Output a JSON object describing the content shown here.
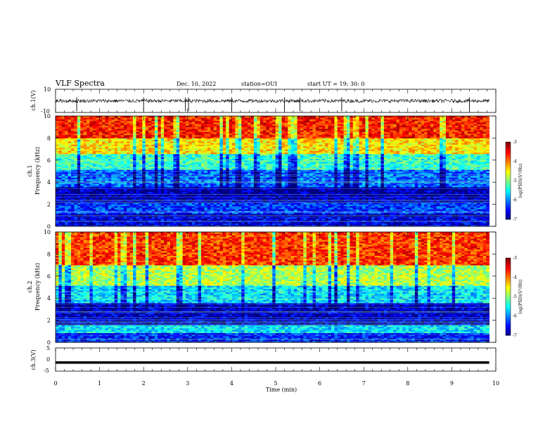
{
  "header": {
    "title": "VLF Spectra",
    "date": "Dec. 10, 2022",
    "station": "station=OUI",
    "start": "start  UT =   19: 30: 0"
  },
  "chart_data": [
    {
      "type": "line",
      "name": "ch1-waveform",
      "ylabel": "ch.1(V)",
      "ylim": [
        -10,
        10
      ],
      "y_ticks": [
        "10",
        "-10"
      ],
      "x_range": [
        0,
        9.85
      ],
      "baseline": 0,
      "spike_times": [
        0.48,
        2.0,
        2.95,
        3.02,
        4.0,
        5.2,
        5.55,
        6.5,
        9.4
      ]
    },
    {
      "type": "heatmap",
      "name": "ch1-spectrogram",
      "ylabel": "ch.1\nFrequency (kHz)",
      "ylim": [
        0,
        10
      ],
      "y_ticks": [
        "0",
        "2",
        "4",
        "6",
        "8",
        "10"
      ],
      "colorbar": {
        "label": "log(PSD)(V²/Hz)",
        "ticks": [
          "-3",
          "-4",
          "-5",
          "-6",
          "-7"
        ],
        "range": [
          -7,
          -3
        ]
      },
      "bands_khz": [
        {
          "from": 0,
          "to": 0.8,
          "level": -6.6
        },
        {
          "from": 0.8,
          "to": 1.2,
          "level": -6.8
        },
        {
          "from": 1.2,
          "to": 2.2,
          "level": -6.3
        },
        {
          "from": 2.2,
          "to": 3.6,
          "level": -6.8
        },
        {
          "from": 3.6,
          "to": 5.2,
          "level": -6.1
        },
        {
          "from": 5.2,
          "to": 6.6,
          "level": -5.3
        },
        {
          "from": 6.6,
          "to": 8.0,
          "level": -4.4
        },
        {
          "from": 8.0,
          "to": 10.0,
          "level": -3.6
        }
      ]
    },
    {
      "type": "heatmap",
      "name": "ch2-spectrogram",
      "ylabel": "ch.2\nFrequency (kHz)",
      "ylim": [
        0,
        10
      ],
      "y_ticks": [
        "0",
        "2",
        "4",
        "6",
        "8",
        "10"
      ],
      "colorbar": {
        "label": "log(PSD)(V²/Hz)",
        "ticks": [
          "-3",
          "-4",
          "-5",
          "-6",
          "-7"
        ],
        "range": [
          -7,
          -3
        ]
      },
      "bands_khz": [
        {
          "from": 0,
          "to": 0.8,
          "level": -6.4
        },
        {
          "from": 0.8,
          "to": 1.6,
          "level": -5.6
        },
        {
          "from": 1.6,
          "to": 3.6,
          "level": -6.7
        },
        {
          "from": 3.6,
          "to": 5.2,
          "level": -5.6
        },
        {
          "from": 5.2,
          "to": 7.0,
          "level": -4.8
        },
        {
          "from": 7.0,
          "to": 10.0,
          "level": -3.7
        }
      ]
    },
    {
      "type": "line",
      "name": "ch3-waveform",
      "ylabel": "ch.3(V)",
      "ylim": [
        -5,
        5
      ],
      "y_ticks": [
        "5",
        "0",
        "-5"
      ],
      "x_range": [
        0,
        9.85
      ],
      "baseline": -1.3
    }
  ],
  "x_axis": {
    "label": "Time (min)",
    "range": [
      0,
      10
    ],
    "ticks": [
      "0",
      "1",
      "2",
      "3",
      "4",
      "5",
      "6",
      "7",
      "8",
      "9",
      "10"
    ]
  }
}
